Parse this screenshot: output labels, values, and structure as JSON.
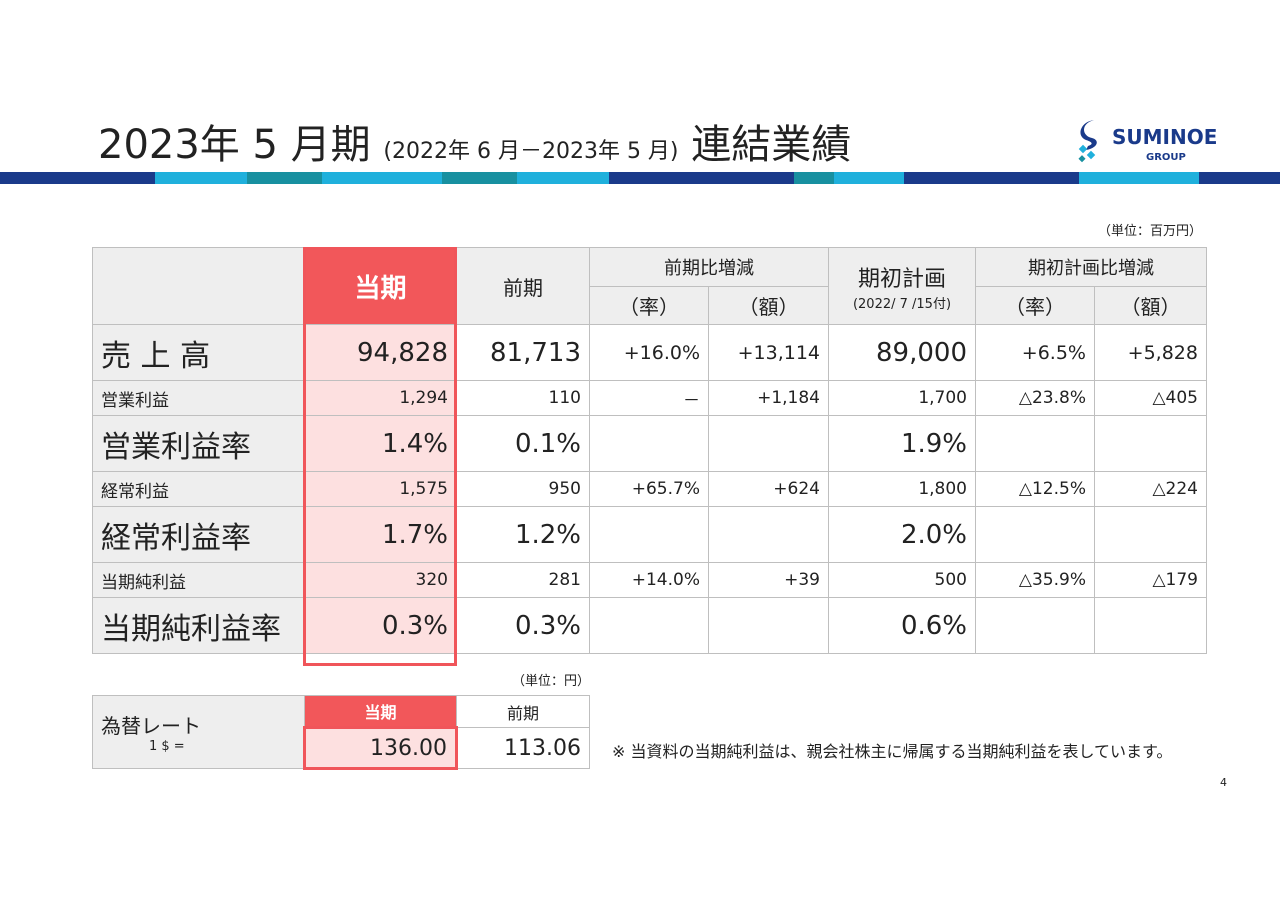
{
  "header": {
    "title_main": "2023年 5 月期",
    "title_period": "(2022年 6 月－2023年 5 月)",
    "title_tail": "連結業績",
    "logo_name": "SUMINOE",
    "logo_sub": "GROUP"
  },
  "unit_note": "（単位：百万円）",
  "table": {
    "headers": {
      "current": "当期",
      "previous": "前期",
      "vs_previous": "前期比増減",
      "vs_previous_rate": "（率）",
      "vs_previous_amount": "（額）",
      "plan": "期初計画",
      "plan_date": "(2022/ 7 /15付)",
      "vs_plan": "期初計画比増減",
      "vs_plan_rate": "（率）",
      "vs_plan_amount": "（額）"
    },
    "rows": [
      [
        "売 上 高",
        "94,828",
        "81,713",
        "+16.0%",
        "+13,114",
        "89,000",
        "+6.5%",
        "+5,828"
      ],
      [
        "営業利益",
        "1,294",
        "110",
        "－",
        "+1,184",
        "1,700",
        "△23.8%",
        "△405"
      ],
      [
        "営業利益率",
        "1.4%",
        "0.1%",
        null,
        null,
        "1.9%",
        null,
        null
      ],
      [
        "経常利益",
        "1,575",
        "950",
        "+65.7%",
        "+624",
        "1,800",
        "△12.5%",
        "△224"
      ],
      [
        "経常利益率",
        "1.7%",
        "1.2%",
        null,
        null,
        "2.0%",
        null,
        null
      ],
      [
        "当期純利益",
        "320",
        "281",
        "+14.0%",
        "+39",
        "500",
        "△35.9%",
        "△179"
      ],
      [
        "当期純利益率",
        "0.3%",
        "0.3%",
        null,
        null,
        "0.6%",
        null,
        null
      ]
    ]
  },
  "fx": {
    "unit_note": "（単位：円）",
    "label": "為替レート",
    "sub_label": "1 $ =",
    "current_header": "当期",
    "previous_header": "前期",
    "current": "136.00",
    "previous": "113.06"
  },
  "footnote": "※ 当資料の当期純利益は、親会社株主に帰属する当期純利益を表しています。",
  "page_number": "4"
}
